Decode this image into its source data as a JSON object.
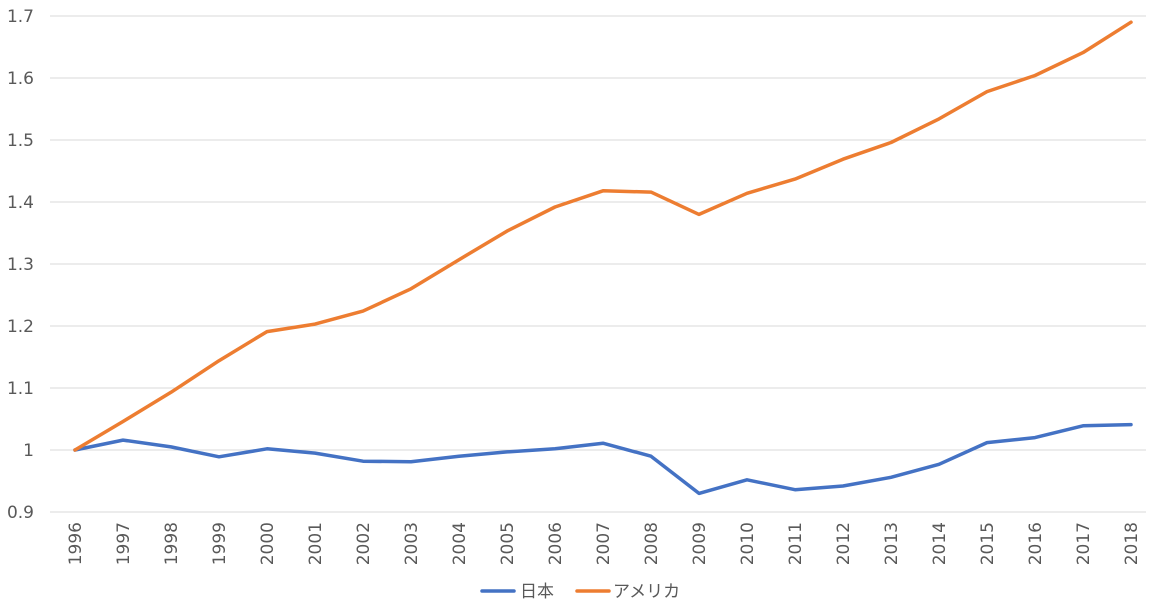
{
  "chart_data": {
    "type": "line",
    "title": "",
    "xlabel": "",
    "ylabel": "",
    "categories": [
      "1996",
      "1997",
      "1998",
      "1999",
      "2000",
      "2001",
      "2002",
      "2003",
      "2004",
      "2005",
      "2006",
      "2007",
      "2008",
      "2009",
      "2010",
      "2011",
      "2012",
      "2013",
      "2014",
      "2015",
      "2016",
      "2017",
      "2018"
    ],
    "ylim": [
      0.9,
      1.7
    ],
    "yticks": [
      0.9,
      1.0,
      1.1,
      1.2,
      1.3,
      1.4,
      1.5,
      1.6,
      1.7
    ],
    "ytick_labels": [
      "0.9",
      "1",
      "1.1",
      "1.2",
      "1.3",
      "1.4",
      "1.5",
      "1.6",
      "1.7"
    ],
    "grid": true,
    "legend": "bottom",
    "series": [
      {
        "name": "日本",
        "color": "#4472c4",
        "values": [
          1.0,
          1.016,
          1.005,
          0.989,
          1.002,
          0.995,
          0.982,
          0.981,
          0.99,
          0.997,
          1.002,
          1.011,
          0.99,
          0.93,
          0.952,
          0.936,
          0.942,
          0.956,
          0.977,
          1.012,
          1.02,
          1.039,
          1.041
        ]
      },
      {
        "name": "アメリカ",
        "color": "#ed7d31",
        "values": [
          1.0,
          1.046,
          1.093,
          1.144,
          1.191,
          1.203,
          1.224,
          1.26,
          1.307,
          1.353,
          1.392,
          1.418,
          1.416,
          1.38,
          1.414,
          1.437,
          1.469,
          1.496,
          1.534,
          1.578,
          1.604,
          1.641,
          1.69
        ]
      }
    ]
  }
}
